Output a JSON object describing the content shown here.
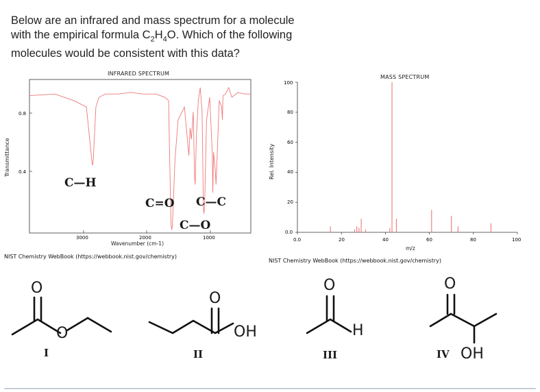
{
  "question": {
    "line1": "Below are an infrared and mass spectrum for a molecule",
    "line2_prefix": "with the empirical formula C",
    "sub1": "2",
    "h": "H",
    "sub2": "4",
    "o_tail": "O. Which of the following",
    "line3": "molecules would be consistent with this data?"
  },
  "ir": {
    "title": "INFRARED SPECTRUM",
    "ylabel": "Transmittance",
    "xlabel": "Wavenumber (cm-1)",
    "credit": "NIST Chemistry WebBook (https://webbook.nist.gov/chemistry)",
    "yticks": [
      "0.8",
      "0.4"
    ],
    "xticks": [
      "3000",
      "2000",
      "1000"
    ],
    "annotations": {
      "ch": "C—H",
      "co_double": "C=O",
      "cc": "C—C",
      "co_single": "C—O"
    }
  },
  "ms": {
    "title": "MASS SPECTRUM",
    "ylabel": "Rel. Intensity",
    "xlabel": "m/z",
    "credit": "NIST Chemistry WebBook (https://webbook.nist.gov/chemistry)",
    "yticks": [
      "100",
      "80",
      "60",
      "40",
      "20",
      "0.0"
    ],
    "xticks": [
      "0.0",
      "20",
      "40",
      "60",
      "80",
      "100"
    ]
  },
  "chart_data": [
    {
      "type": "line",
      "title": "INFRARED SPECTRUM",
      "xlabel": "Wavenumber (cm-1)",
      "ylabel": "Transmittance",
      "x_reversed": true,
      "series": [
        {
          "x": [
            4000,
            3600,
            3300,
            3100,
            3010,
            3000,
            2990,
            2950,
            2900,
            2800,
            2600,
            2400,
            2200,
            2000,
            1860,
            1800,
            1770,
            1760,
            1750,
            1740,
            1700,
            1650,
            1550,
            1480,
            1460,
            1440,
            1410,
            1390,
            1380,
            1360,
            1330,
            1300,
            1270,
            1250,
            1240,
            1230,
            1200,
            1150,
            1110,
            1100,
            1090,
            1060,
            1050,
            1040,
            1000,
            960,
            950,
            940,
            900,
            850,
            800,
            700,
            600,
            500
          ],
          "y": [
            0.85,
            0.86,
            0.82,
            0.78,
            0.43,
            0.42,
            0.46,
            0.78,
            0.84,
            0.86,
            0.86,
            0.87,
            0.86,
            0.86,
            0.84,
            0.82,
            0.2,
            0.05,
            0.02,
            0.05,
            0.45,
            0.7,
            0.78,
            0.48,
            0.65,
            0.58,
            0.75,
            0.35,
            0.3,
            0.6,
            0.82,
            0.9,
            0.75,
            0.15,
            0.12,
            0.18,
            0.7,
            0.84,
            0.5,
            0.25,
            0.5,
            0.38,
            0.3,
            0.4,
            0.82,
            0.78,
            0.7,
            0.85,
            0.86,
            0.9,
            0.84,
            0.87,
            0.86,
            0.86
          ]
        }
      ]
    },
    {
      "type": "bar",
      "title": "MASS SPECTRUM",
      "xlabel": "m/z",
      "ylabel": "Rel. Intensity",
      "xlim": [
        0,
        100
      ],
      "ylim": [
        0,
        100
      ],
      "x": [
        15,
        26,
        27,
        28,
        29,
        31,
        42,
        43,
        45,
        61,
        70,
        73,
        88
      ],
      "values": [
        4,
        2,
        4,
        3,
        9,
        2,
        3,
        100,
        9,
        15,
        11,
        4,
        6
      ]
    }
  ],
  "molecules": [
    {
      "label": "I",
      "o_label": "O",
      "carbonyl_o": "O"
    },
    {
      "label": "II",
      "oh_label": "OH",
      "carbonyl_o": "O"
    },
    {
      "label": "III",
      "h_label": "H",
      "carbonyl_o": "O"
    },
    {
      "label": "IV",
      "oh_label": "OH",
      "carbonyl_o": "O"
    }
  ],
  "colors": {
    "ir_line": "#ee7777",
    "ms_bars": "#ee7777",
    "text": "#111111"
  }
}
